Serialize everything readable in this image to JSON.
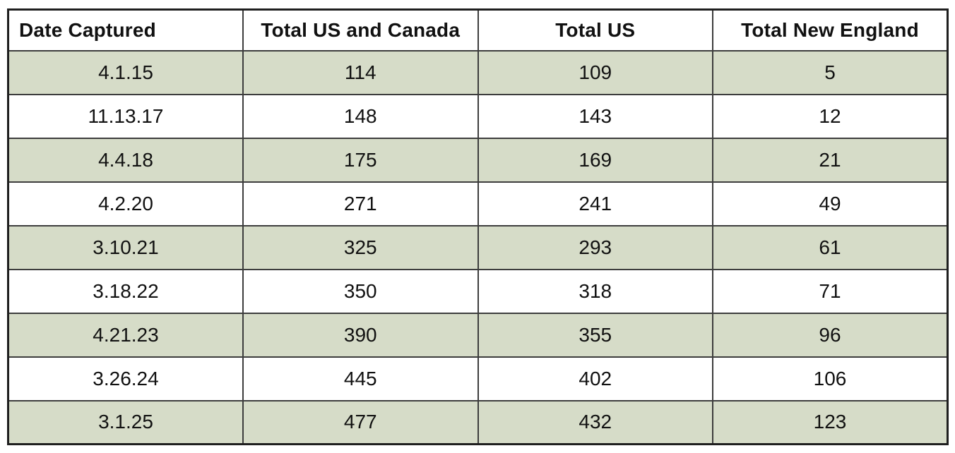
{
  "colors": {
    "row_shade": "#d6dcc8",
    "border_inner": "#3d3d3d",
    "border_outer": "#1f1f1f",
    "text": "#111111"
  },
  "chart_data": {
    "type": "table",
    "title": "",
    "columns": [
      "Date Captured",
      "Total US and Canada",
      "Total US",
      "Total New England"
    ],
    "rows": [
      [
        "4.1.15",
        "114",
        "109",
        "5"
      ],
      [
        "11.13.17",
        "148",
        "143",
        "12"
      ],
      [
        "4.4.18",
        "175",
        "169",
        "21"
      ],
      [
        "4.2.20",
        "271",
        "241",
        "49"
      ],
      [
        "3.10.21",
        "325",
        "293",
        "61"
      ],
      [
        "3.18.22",
        "350",
        "318",
        "71"
      ],
      [
        "4.21.23",
        "390",
        "355",
        "96"
      ],
      [
        "3.26.24",
        "445",
        "402",
        "106"
      ],
      [
        "3.1.25",
        "477",
        "432",
        "123"
      ]
    ],
    "layout_hints": {
      "header_bold": true,
      "first_column_header_align": "left",
      "cell_align": "center",
      "alternating_row_shading": "rows 1,3,5,7,9 shaded green starting with first data row"
    }
  }
}
